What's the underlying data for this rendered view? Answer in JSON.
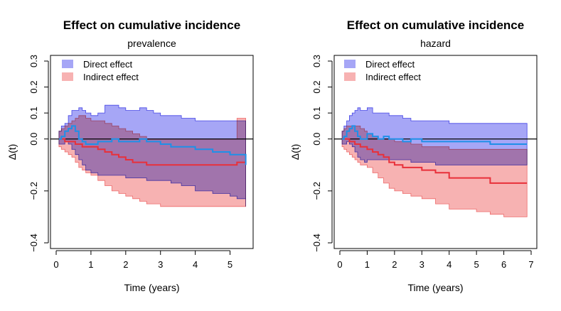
{
  "colors": {
    "direct_fill": "#a6a6f6",
    "direct_line": "#1e90e8",
    "indirect_fill": "#f7b2b2",
    "indirect_line": "#e8303a",
    "overlap_fill": "#a061b6",
    "band_edge_blue": "#4646e6",
    "band_edge_red": "#ee6a6a",
    "zero_line": "#000000"
  },
  "chart_data": [
    {
      "type": "area",
      "title": "Effect on cumulative incidence",
      "subtitle": "prevalence",
      "xlabel": "Time (years)",
      "ylabel": "Δ(t)",
      "xlim": [
        0,
        5.5
      ],
      "ylim": [
        -0.4,
        0.3
      ],
      "xticks": [
        "0",
        "1",
        "2",
        "3",
        "4",
        "5"
      ],
      "yticks": [
        "−0.4",
        "−0.2",
        "0.0",
        "0.1",
        "0.2",
        "0.3"
      ],
      "legend": [
        "Direct effect",
        "Indirect effect"
      ],
      "series": [
        {
          "name": "Direct effect",
          "x": [
            0.08,
            0.15,
            0.25,
            0.35,
            0.45,
            0.55,
            0.65,
            0.75,
            0.85,
            1.0,
            1.2,
            1.4,
            1.6,
            1.8,
            2.0,
            2.2,
            2.4,
            2.6,
            2.8,
            3.0,
            3.3,
            3.6,
            4.0,
            4.5,
            5.0,
            5.2,
            5.45
          ],
          "values": [
            0.0,
            0.01,
            0.03,
            0.04,
            0.05,
            0.03,
            0.0,
            -0.01,
            -0.02,
            -0.02,
            -0.01,
            -0.01,
            0.0,
            -0.01,
            -0.01,
            -0.01,
            0.0,
            -0.01,
            -0.01,
            -0.02,
            -0.03,
            -0.03,
            -0.04,
            -0.05,
            -0.06,
            -0.06,
            -0.1
          ],
          "upper": [
            0.03,
            0.05,
            0.06,
            0.09,
            0.11,
            0.11,
            0.12,
            0.11,
            0.1,
            0.09,
            0.1,
            0.13,
            0.13,
            0.12,
            0.11,
            0.11,
            0.12,
            0.11,
            0.1,
            0.09,
            0.09,
            0.08,
            0.07,
            0.07,
            0.07,
            0.07,
            0.07
          ],
          "lower": [
            -0.02,
            -0.02,
            -0.01,
            -0.02,
            -0.04,
            -0.06,
            -0.08,
            -0.1,
            -0.12,
            -0.13,
            -0.14,
            -0.14,
            -0.14,
            -0.14,
            -0.15,
            -0.15,
            -0.15,
            -0.16,
            -0.16,
            -0.16,
            -0.17,
            -0.18,
            -0.2,
            -0.21,
            -0.22,
            -0.23,
            -0.26
          ]
        },
        {
          "name": "Indirect effect",
          "x": [
            0.08,
            0.15,
            0.25,
            0.35,
            0.45,
            0.55,
            0.65,
            0.75,
            0.85,
            1.0,
            1.2,
            1.4,
            1.6,
            1.8,
            2.0,
            2.2,
            2.4,
            2.6,
            2.8,
            3.0,
            3.3,
            3.6,
            4.0,
            4.5,
            5.0,
            5.2,
            5.45
          ],
          "values": [
            0.0,
            0.0,
            -0.01,
            -0.01,
            -0.01,
            -0.02,
            -0.02,
            -0.03,
            -0.03,
            -0.03,
            -0.04,
            -0.05,
            -0.06,
            -0.07,
            -0.08,
            -0.09,
            -0.09,
            -0.1,
            -0.1,
            -0.1,
            -0.1,
            -0.1,
            -0.1,
            -0.1,
            -0.1,
            -0.09,
            -0.09
          ],
          "upper": [
            0.03,
            0.04,
            0.05,
            0.06,
            0.07,
            0.08,
            0.09,
            0.09,
            0.08,
            0.07,
            0.07,
            0.06,
            0.05,
            0.04,
            0.03,
            0.02,
            0.01,
            0.0,
            0.0,
            0.0,
            0.0,
            0.0,
            0.0,
            0.0,
            0.0,
            0.08,
            0.08
          ],
          "lower": [
            -0.03,
            -0.04,
            -0.05,
            -0.06,
            -0.07,
            -0.09,
            -0.11,
            -0.12,
            -0.13,
            -0.14,
            -0.16,
            -0.18,
            -0.2,
            -0.21,
            -0.22,
            -0.23,
            -0.24,
            -0.25,
            -0.25,
            -0.26,
            -0.26,
            -0.26,
            -0.26,
            -0.26,
            -0.26,
            -0.26,
            -0.26
          ]
        }
      ]
    },
    {
      "type": "area",
      "title": "Effect on cumulative incidence",
      "subtitle": "hazard",
      "xlabel": "Time (years)",
      "ylabel": "Δ(t)",
      "xlim": [
        0,
        7
      ],
      "ylim": [
        -0.4,
        0.3
      ],
      "xticks": [
        "0",
        "1",
        "2",
        "3",
        "4",
        "5",
        "6",
        "7"
      ],
      "yticks": [
        "−0.4",
        "−0.2",
        "0.0",
        "0.1",
        "0.2",
        "0.3"
      ],
      "legend": [
        "Direct effect",
        "Indirect effect"
      ],
      "series": [
        {
          "name": "Direct effect",
          "x": [
            0.08,
            0.15,
            0.25,
            0.35,
            0.45,
            0.55,
            0.65,
            0.75,
            0.9,
            1.0,
            1.2,
            1.4,
            1.6,
            1.8,
            2.0,
            2.3,
            2.6,
            3.0,
            3.5,
            4.0,
            4.5,
            5.0,
            5.5,
            6.0,
            6.5,
            6.85
          ],
          "values": [
            0.0,
            0.01,
            0.03,
            0.04,
            0.05,
            0.03,
            0.01,
            0.0,
            0.0,
            0.02,
            0.01,
            0.0,
            0.01,
            0.0,
            0.0,
            -0.01,
            0.0,
            -0.01,
            -0.01,
            -0.01,
            -0.01,
            -0.01,
            -0.02,
            -0.02,
            -0.02,
            -0.02
          ],
          "upper": [
            0.03,
            0.05,
            0.07,
            0.09,
            0.1,
            0.11,
            0.12,
            0.11,
            0.11,
            0.12,
            0.1,
            0.1,
            0.1,
            0.09,
            0.09,
            0.08,
            0.07,
            0.07,
            0.07,
            0.06,
            0.06,
            0.06,
            0.06,
            0.06,
            0.06,
            0.05
          ],
          "lower": [
            -0.02,
            -0.02,
            -0.01,
            -0.02,
            -0.03,
            -0.05,
            -0.07,
            -0.08,
            -0.09,
            -0.08,
            -0.08,
            -0.08,
            -0.08,
            -0.08,
            -0.08,
            -0.08,
            -0.09,
            -0.09,
            -0.1,
            -0.1,
            -0.1,
            -0.1,
            -0.1,
            -0.1,
            -0.1,
            -0.1
          ]
        },
        {
          "name": "Indirect effect",
          "x": [
            0.08,
            0.15,
            0.25,
            0.35,
            0.45,
            0.55,
            0.65,
            0.75,
            0.9,
            1.0,
            1.2,
            1.4,
            1.6,
            1.8,
            2.0,
            2.3,
            2.6,
            3.0,
            3.5,
            4.0,
            4.5,
            5.0,
            5.5,
            6.0,
            6.5,
            6.85
          ],
          "values": [
            0.0,
            0.0,
            0.0,
            -0.01,
            -0.01,
            -0.02,
            -0.02,
            -0.03,
            -0.03,
            -0.04,
            -0.05,
            -0.06,
            -0.07,
            -0.09,
            -0.1,
            -0.11,
            -0.11,
            -0.12,
            -0.13,
            -0.15,
            -0.15,
            -0.15,
            -0.17,
            -0.17,
            -0.17,
            -0.17
          ],
          "upper": [
            0.03,
            0.04,
            0.05,
            0.05,
            0.05,
            0.05,
            0.05,
            0.04,
            0.03,
            0.02,
            0.01,
            0.0,
            0.0,
            0.0,
            -0.01,
            -0.01,
            -0.02,
            -0.03,
            -0.03,
            -0.04,
            -0.04,
            -0.04,
            -0.04,
            -0.04,
            -0.04,
            -0.04
          ],
          "lower": [
            -0.03,
            -0.04,
            -0.05,
            -0.06,
            -0.07,
            -0.08,
            -0.09,
            -0.1,
            -0.1,
            -0.11,
            -0.13,
            -0.15,
            -0.17,
            -0.19,
            -0.2,
            -0.21,
            -0.22,
            -0.23,
            -0.25,
            -0.27,
            -0.27,
            -0.28,
            -0.29,
            -0.3,
            -0.3,
            -0.3
          ]
        }
      ]
    }
  ]
}
